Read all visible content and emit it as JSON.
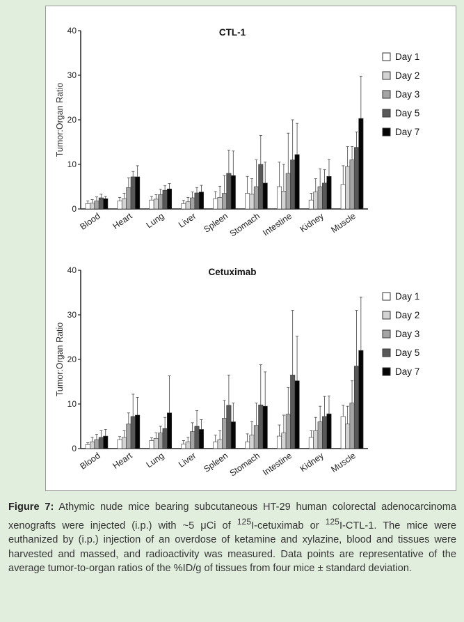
{
  "caption": {
    "label": "Figure 7:",
    "part1": " Athymic nude mice bearing subcutaneous HT-29 human colorectal adenocarcinoma xenografts were injected (i.p.) with ~5 μCi of ",
    "sup1": "125",
    "part2": "I-cetuximab or ",
    "sup2": "125",
    "part3": "I-CTL-1. The mice were euthanized by (i.p.) injection of an overdose of ketamine and xylazine, blood and tissues were harvested and massed, and radioactivity was measured. Data points are representative of the average tumor-to-organ ratios of the %ID/g of tissues from four mice ± standard deviation."
  },
  "colors": {
    "Day 1": "#ffffff",
    "Day 2": "#d3d3d3",
    "Day 3": "#a4a4a4",
    "Day 5": "#595959",
    "Day 7": "#050505"
  },
  "chart_data": [
    {
      "type": "bar",
      "title": "CTL-1",
      "ylabel": "Tumor:Organ Ratio",
      "xlabel": "",
      "ylim": [
        0,
        40
      ],
      "yticks": [
        "0",
        "10",
        "20",
        "30",
        "40"
      ],
      "legend_position": "right",
      "categories": [
        "Blood",
        "Heart",
        "Lung",
        "Liver",
        "Spleen",
        "Stomach",
        "Intestine",
        "Kidney",
        "Muscle"
      ],
      "series": [
        {
          "name": "Day 1",
          "values": [
            1.2,
            1.8,
            2.0,
            1.2,
            2.3,
            3.5,
            5.0,
            2.0,
            5.5
          ],
          "errors": [
            0.6,
            0.8,
            0.8,
            0.7,
            1.6,
            3.8,
            5.5,
            1.5,
            4.2
          ]
        },
        {
          "name": "Day 2",
          "values": [
            1.3,
            2.3,
            2.2,
            1.6,
            2.6,
            3.3,
            4.0,
            3.8,
            9.5
          ],
          "errors": [
            0.8,
            1.2,
            1.0,
            1.0,
            2.5,
            3.5,
            6.0,
            3.0,
            4.5
          ]
        },
        {
          "name": "Day 3",
          "values": [
            1.8,
            4.8,
            3.2,
            2.5,
            3.5,
            5.0,
            8.0,
            5.0,
            11.0
          ],
          "errors": [
            0.9,
            2.2,
            1.2,
            1.3,
            4.0,
            6.0,
            9.0,
            4.0,
            3.0
          ]
        },
        {
          "name": "Day 5",
          "values": [
            2.5,
            7.2,
            4.2,
            3.6,
            8.0,
            10.0,
            11.0,
            5.8,
            13.8
          ],
          "errors": [
            0.8,
            1.2,
            1.0,
            1.2,
            5.2,
            6.5,
            9.0,
            3.0,
            3.5
          ]
        },
        {
          "name": "Day 7",
          "values": [
            2.3,
            7.2,
            4.5,
            3.8,
            7.5,
            5.8,
            12.2,
            7.3,
            20.3
          ],
          "errors": [
            0.5,
            2.5,
            1.2,
            1.5,
            5.5,
            4.7,
            7.0,
            3.8,
            9.5
          ]
        }
      ]
    },
    {
      "type": "bar",
      "title": "Cetuximab",
      "ylabel": "Tumor:Organ Ratio",
      "xlabel": "",
      "ylim": [
        0,
        40
      ],
      "yticks": [
        "0",
        "10",
        "20",
        "30",
        "40"
      ],
      "legend_position": "right",
      "categories": [
        "Blood",
        "Heart",
        "Lung",
        "Liver",
        "Spleen",
        "Stomach",
        "Intestine",
        "Kidney",
        "Muscle"
      ],
      "series": [
        {
          "name": "Day 1",
          "values": [
            0.9,
            2.0,
            1.8,
            1.0,
            1.5,
            1.5,
            2.8,
            2.5,
            7.2
          ],
          "errors": [
            0.4,
            0.7,
            0.6,
            0.8,
            1.5,
            1.8,
            2.5,
            1.5,
            2.5
          ]
        },
        {
          "name": "Day 2",
          "values": [
            1.5,
            2.5,
            2.3,
            1.5,
            2.0,
            3.0,
            3.5,
            4.0,
            5.5
          ],
          "errors": [
            1.0,
            1.5,
            1.2,
            1.0,
            2.0,
            3.0,
            4.0,
            3.0,
            4.0
          ]
        },
        {
          "name": "Day 3",
          "values": [
            2.0,
            5.5,
            3.5,
            3.8,
            6.8,
            5.2,
            7.7,
            6.0,
            10.2
          ],
          "errors": [
            1.2,
            2.5,
            1.5,
            2.0,
            4.0,
            5.0,
            6.0,
            3.5,
            5.0
          ]
        },
        {
          "name": "Day 5",
          "values": [
            2.5,
            7.2,
            4.5,
            5.0,
            9.7,
            9.8,
            16.5,
            7.2,
            18.5
          ],
          "errors": [
            1.5,
            5.0,
            2.5,
            3.5,
            6.8,
            9.0,
            14.5,
            4.5,
            12.5
          ]
        },
        {
          "name": "Day 7",
          "values": [
            2.8,
            7.5,
            8.0,
            4.3,
            6.0,
            9.5,
            15.2,
            7.8,
            22.0
          ],
          "errors": [
            1.5,
            4.0,
            8.3,
            2.2,
            4.2,
            7.7,
            10.0,
            4.0,
            12.0
          ]
        }
      ]
    }
  ]
}
